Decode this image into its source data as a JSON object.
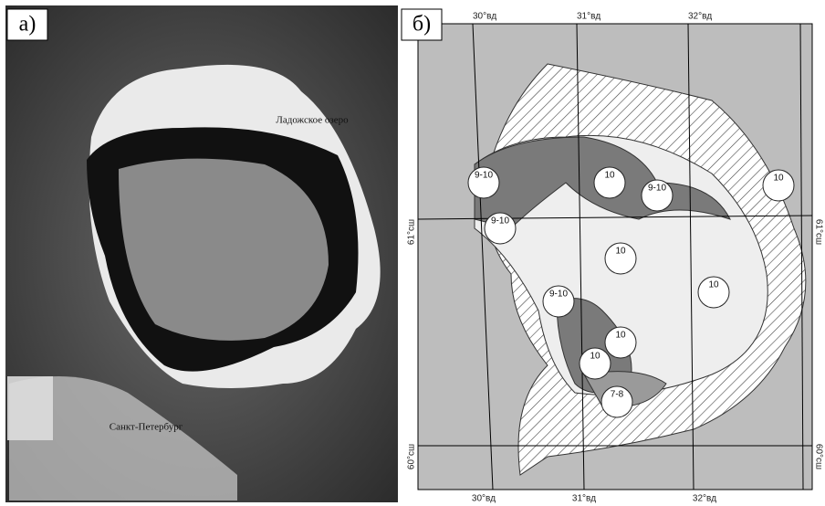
{
  "panel_a": {
    "label": "а)",
    "places": [
      "Ладожское озеро",
      "Санкт-Петербург"
    ]
  },
  "panel_b": {
    "label": "б)",
    "lon_labels_top": [
      "30°вд",
      "31°вд",
      "32°вд"
    ],
    "lon_labels_bottom": [
      "30°вд",
      "31°вд",
      "32°вд"
    ],
    "lat_labels_left": [
      "61°сш",
      "60°сш"
    ],
    "lat_labels_right": [
      "61°сш",
      "60°сш"
    ],
    "ice_codes": [
      "9-10",
      "10",
      "9-10",
      "10",
      "9-10",
      "10",
      "10",
      "9-10",
      "10",
      "10",
      "7-8"
    ]
  }
}
